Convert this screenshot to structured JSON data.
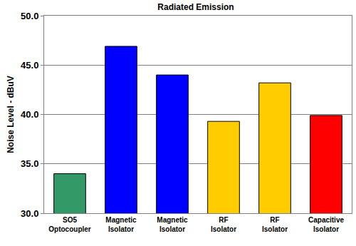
{
  "chart_data": {
    "type": "bar",
    "title": "Radiated Emission",
    "y_label": "Noise Level - dBuV",
    "categories": [
      "SO5 Optocoupler",
      "Magnetic Isolator",
      "Magnetic Isolator",
      "RF Isolator",
      "RF Isolator",
      "Capacitive Isolator"
    ],
    "values": [
      34.0,
      46.9,
      44.0,
      39.3,
      43.2,
      39.9
    ],
    "colors": [
      "#339966",
      "#0000ff",
      "#0000ff",
      "#ffcc00",
      "#ffcc00",
      "#ff0000"
    ],
    "ylim": [
      30,
      50
    ],
    "yticks": [
      {
        "value": 30,
        "label": "30.0"
      },
      {
        "value": 35,
        "label": "35.0"
      },
      {
        "value": 40,
        "label": "40.0"
      },
      {
        "value": 45,
        "label": "45.0"
      },
      {
        "value": 50,
        "label": "50.0"
      }
    ],
    "grid": true
  }
}
